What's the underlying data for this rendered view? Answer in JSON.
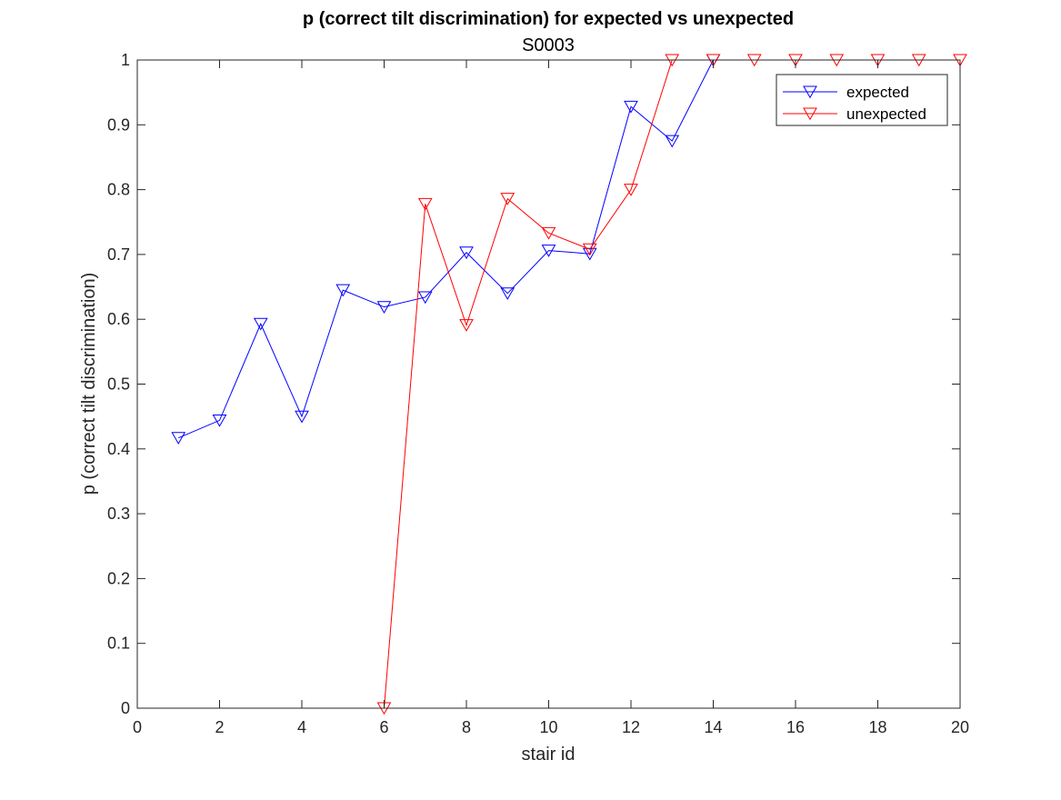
{
  "chart_data": {
    "type": "line",
    "title": "p (correct tilt discrimination) for expected vs unexpected",
    "subtitle": "S0003",
    "xlabel": "stair id",
    "ylabel": "p (correct tilt discrimination)",
    "xlim": [
      0,
      20
    ],
    "ylim": [
      0,
      1
    ],
    "xticks": [
      "0",
      "2",
      "4",
      "6",
      "8",
      "10",
      "12",
      "14",
      "16",
      "18",
      "20"
    ],
    "yticks": [
      "0",
      "0.1",
      "0.2",
      "0.3",
      "0.4",
      "0.5",
      "0.6",
      "0.7",
      "0.8",
      "0.9",
      "1"
    ],
    "grid": false,
    "legend_position": "top-right",
    "marker": "down-triangle",
    "series": [
      {
        "name": "expected",
        "color": "#0000ff",
        "x": [
          1,
          2,
          3,
          4,
          5,
          6,
          7,
          8,
          9,
          10,
          11,
          12,
          13,
          14
        ],
        "y": [
          0.417,
          0.444,
          0.593,
          0.45,
          0.645,
          0.619,
          0.634,
          0.703,
          0.64,
          0.706,
          0.701,
          0.928,
          0.875,
          1.0
        ]
      },
      {
        "name": "unexpected",
        "color": "#ff0000",
        "x": [
          6,
          7,
          8,
          9,
          10,
          11,
          12,
          13,
          14,
          15,
          16,
          17,
          18,
          19,
          20
        ],
        "y": [
          0.0,
          0.778,
          0.591,
          0.786,
          0.733,
          0.708,
          0.8,
          1.0,
          1.0,
          1.0,
          1.0,
          1.0,
          1.0,
          1.0,
          1.0
        ]
      }
    ]
  }
}
